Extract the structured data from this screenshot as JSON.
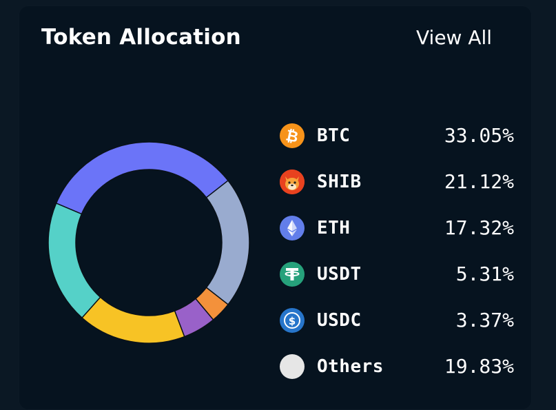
{
  "header": {
    "title": "Token Allocation",
    "view_all_label": "View All"
  },
  "chart_data": {
    "type": "pie",
    "categories": [
      "BTC",
      "SHIB",
      "ETH",
      "USDT",
      "USDC",
      "Others"
    ],
    "values": [
      33.05,
      21.12,
      17.32,
      5.31,
      3.37,
      19.83
    ],
    "title": "Token Allocation",
    "donut": true
  },
  "donut_segments": [
    {
      "name": "periwinkle",
      "value": 33.05,
      "color": "#6b74f8"
    },
    {
      "name": "slate",
      "value": 21.12,
      "color": "#99abcf"
    },
    {
      "name": "orange",
      "value": 3.37,
      "color": "#f3913b"
    },
    {
      "name": "purple",
      "value": 5.31,
      "color": "#9961c9"
    },
    {
      "name": "yellow",
      "value": 17.32,
      "color": "#f7c325"
    },
    {
      "name": "teal",
      "value": 19.83,
      "color": "#55d1c8"
    }
  ],
  "legend": [
    {
      "symbol": "BTC",
      "percent": "33.05%",
      "icon": "bitcoin-icon",
      "color": "#f7931a"
    },
    {
      "symbol": "SHIB",
      "percent": "21.12%",
      "icon": "shiba-inu-icon",
      "color": "#e8421f"
    },
    {
      "symbol": "ETH",
      "percent": "17.32%",
      "icon": "ethereum-icon",
      "color": "#627eea"
    },
    {
      "symbol": "USDT",
      "percent": "5.31%",
      "icon": "tether-icon",
      "color": "#26a17b"
    },
    {
      "symbol": "USDC",
      "percent": "3.37%",
      "icon": "usd-coin-icon",
      "color": "#2775ca"
    },
    {
      "symbol": "Others",
      "percent": "19.83%",
      "icon": "others-icon",
      "color": "#e6e6e6"
    }
  ]
}
